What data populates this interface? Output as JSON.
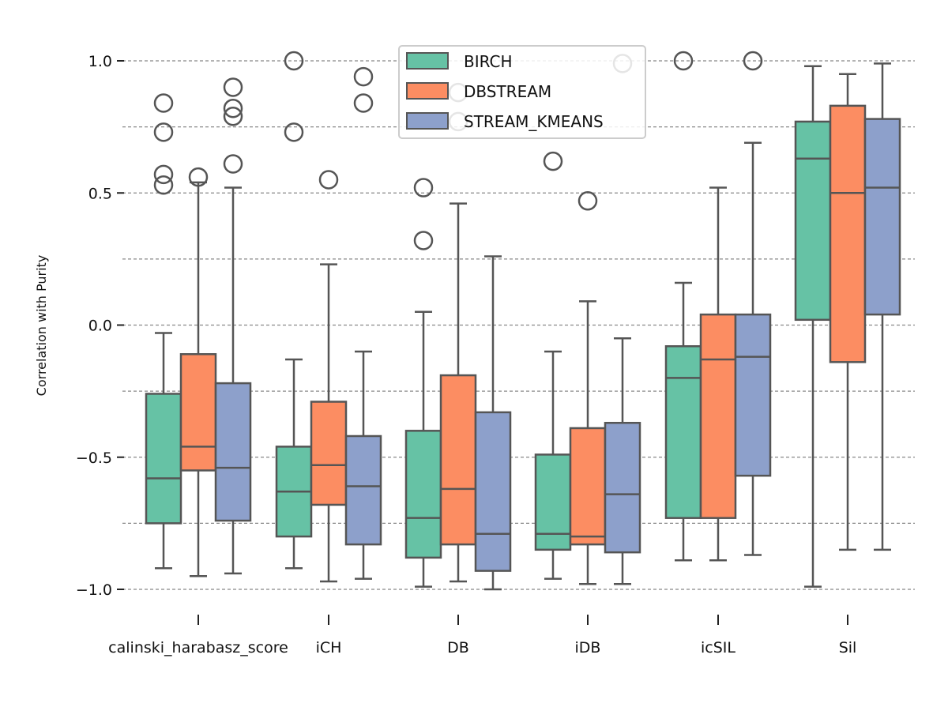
{
  "chart_data": {
    "type": "box",
    "ylabel": "Correlation with Purity",
    "xlabel": "",
    "ylim": [
      -1.1,
      1.05
    ],
    "yticks": [
      -1.0,
      -0.5,
      0.0,
      0.5,
      1.0
    ],
    "ytick_labels": [
      "−1.0",
      "−0.5",
      "0.0",
      "0.5",
      "1.0"
    ],
    "grid": true,
    "legend_position": "top-center",
    "categories": [
      "calinski_harabasz_score",
      "iCH",
      "DB",
      "iDB",
      "icSIL",
      "Sil"
    ],
    "series": [
      {
        "name": "BIRCH",
        "color": "#66c2a5",
        "boxes": [
          {
            "whisker_low": -0.92,
            "q1": -0.75,
            "median": -0.58,
            "q3": -0.26,
            "whisker_high": -0.03,
            "outliers": [
              0.53,
              0.57,
              0.73,
              0.84
            ]
          },
          {
            "whisker_low": -0.92,
            "q1": -0.8,
            "median": -0.63,
            "q3": -0.46,
            "whisker_high": -0.13,
            "outliers": [
              0.73,
              1.0
            ]
          },
          {
            "whisker_low": -0.99,
            "q1": -0.88,
            "median": -0.73,
            "q3": -0.4,
            "whisker_high": 0.05,
            "outliers": [
              0.32,
              0.52
            ]
          },
          {
            "whisker_low": -0.96,
            "q1": -0.85,
            "median": -0.79,
            "q3": -0.49,
            "whisker_high": -0.1,
            "outliers": [
              0.62
            ]
          },
          {
            "whisker_low": -0.89,
            "q1": -0.73,
            "median": -0.2,
            "q3": -0.08,
            "whisker_high": 0.16,
            "outliers": [
              1.0
            ]
          },
          {
            "whisker_low": -0.99,
            "q1": 0.02,
            "median": 0.63,
            "q3": 0.77,
            "whisker_high": 0.98,
            "outliers": []
          }
        ]
      },
      {
        "name": "DBSTREAM",
        "color": "#fc8d62",
        "boxes": [
          {
            "whisker_low": -0.95,
            "q1": -0.55,
            "median": -0.46,
            "q3": -0.11,
            "whisker_high": 0.54,
            "outliers": [
              0.56
            ]
          },
          {
            "whisker_low": -0.97,
            "q1": -0.68,
            "median": -0.53,
            "q3": -0.29,
            "whisker_high": 0.23,
            "outliers": [
              0.55
            ]
          },
          {
            "whisker_low": -0.97,
            "q1": -0.83,
            "median": -0.62,
            "q3": -0.19,
            "whisker_high": 0.46,
            "outliers": [
              0.77,
              0.88
            ]
          },
          {
            "whisker_low": -0.98,
            "q1": -0.83,
            "median": -0.8,
            "q3": -0.39,
            "whisker_high": 0.09,
            "outliers": [
              0.47
            ]
          },
          {
            "whisker_low": -0.89,
            "q1": -0.73,
            "median": -0.13,
            "q3": 0.04,
            "whisker_high": 0.52,
            "outliers": []
          },
          {
            "whisker_low": -0.85,
            "q1": -0.14,
            "median": 0.5,
            "q3": 0.83,
            "whisker_high": 0.95,
            "outliers": []
          }
        ]
      },
      {
        "name": "STREAM_KMEANS",
        "color": "#8da0cb",
        "boxes": [
          {
            "whisker_low": -0.94,
            "q1": -0.74,
            "median": -0.54,
            "q3": -0.22,
            "whisker_high": 0.52,
            "outliers": [
              0.61,
              0.79,
              0.82,
              0.9
            ]
          },
          {
            "whisker_low": -0.96,
            "q1": -0.83,
            "median": -0.61,
            "q3": -0.42,
            "whisker_high": -0.1,
            "outliers": [
              0.84,
              0.94
            ]
          },
          {
            "whisker_low": -1.0,
            "q1": -0.93,
            "median": -0.79,
            "q3": -0.33,
            "whisker_high": 0.26,
            "outliers": []
          },
          {
            "whisker_low": -0.98,
            "q1": -0.86,
            "median": -0.64,
            "q3": -0.37,
            "whisker_high": -0.05,
            "outliers": [
              0.99
            ]
          },
          {
            "whisker_low": -0.87,
            "q1": -0.57,
            "median": -0.12,
            "q3": 0.04,
            "whisker_high": 0.69,
            "outliers": [
              1.0
            ]
          },
          {
            "whisker_low": -0.85,
            "q1": 0.04,
            "median": 0.52,
            "q3": 0.78,
            "whisker_high": 0.99,
            "outliers": []
          }
        ]
      }
    ]
  }
}
